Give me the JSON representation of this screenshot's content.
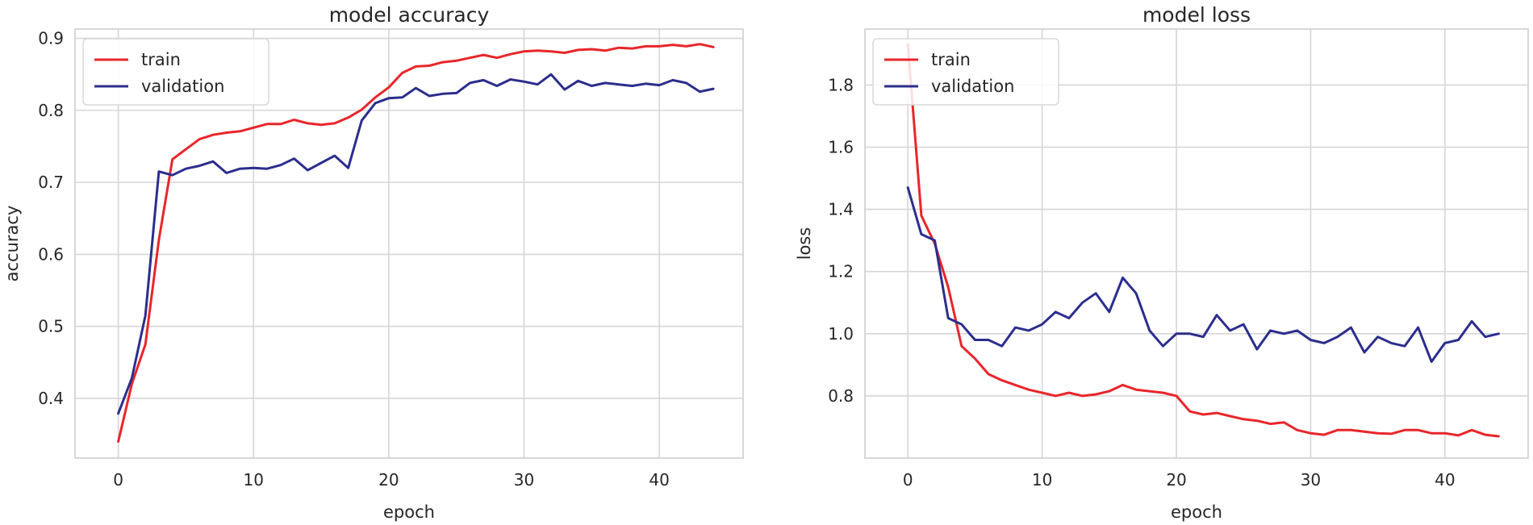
{
  "chart_data": [
    {
      "type": "line",
      "title": "model accuracy",
      "xlabel": "epoch",
      "ylabel": "accuracy",
      "xlim": [
        -3.2,
        46.2
      ],
      "ylim": [
        0.317,
        0.913
      ],
      "xticks": [
        0,
        10,
        20,
        30,
        40
      ],
      "yticks": [
        0.4,
        0.5,
        0.6,
        0.7,
        0.8,
        0.9
      ],
      "yticks_labels": [
        "0.4",
        "0.5",
        "0.6",
        "0.7",
        "0.8",
        "0.9"
      ],
      "grid": true,
      "legend": "upper left",
      "x": [
        0,
        1,
        2,
        3,
        4,
        5,
        6,
        7,
        8,
        9,
        10,
        11,
        12,
        13,
        14,
        15,
        16,
        17,
        18,
        19,
        20,
        21,
        22,
        23,
        24,
        25,
        26,
        27,
        28,
        29,
        30,
        31,
        32,
        33,
        34,
        35,
        36,
        37,
        38,
        39,
        40,
        41,
        42,
        43,
        44
      ],
      "series": [
        {
          "name": "train",
          "color": "#e8262b",
          "values": [
            0.34,
            0.42,
            0.475,
            0.62,
            0.732,
            0.746,
            0.76,
            0.766,
            0.769,
            0.771,
            0.776,
            0.781,
            0.781,
            0.787,
            0.782,
            0.78,
            0.782,
            0.79,
            0.801,
            0.818,
            0.832,
            0.852,
            0.861,
            0.862,
            0.867,
            0.869,
            0.873,
            0.877,
            0.873,
            0.878,
            0.882,
            0.883,
            0.882,
            0.88,
            0.884,
            0.885,
            0.883,
            0.887,
            0.886,
            0.889,
            0.889,
            0.891,
            0.889,
            0.892,
            0.888
          ]
        },
        {
          "name": "validation",
          "color": "#2b2e8c",
          "values": [
            0.379,
            0.428,
            0.515,
            0.715,
            0.71,
            0.719,
            0.723,
            0.729,
            0.713,
            0.719,
            0.72,
            0.719,
            0.724,
            0.733,
            0.717,
            0.727,
            0.737,
            0.72,
            0.786,
            0.81,
            0.817,
            0.818,
            0.831,
            0.82,
            0.823,
            0.824,
            0.838,
            0.842,
            0.834,
            0.843,
            0.84,
            0.836,
            0.85,
            0.829,
            0.841,
            0.834,
            0.838,
            0.836,
            0.834,
            0.837,
            0.835,
            0.842,
            0.838,
            0.826,
            0.83
          ]
        }
      ]
    },
    {
      "type": "line",
      "title": "model loss",
      "xlabel": "epoch",
      "ylabel": "loss",
      "xlim": [
        -3.2,
        46.2
      ],
      "ylim": [
        0.6,
        1.98
      ],
      "xticks": [
        0,
        10,
        20,
        30,
        40
      ],
      "yticks": [
        0.8,
        1.0,
        1.2,
        1.4,
        1.6,
        1.8
      ],
      "yticks_labels": [
        "0.8",
        "1.0",
        "1.2",
        "1.4",
        "1.6",
        "1.8"
      ],
      "grid": true,
      "legend": "upper left",
      "x": [
        0,
        1,
        2,
        3,
        4,
        5,
        6,
        7,
        8,
        9,
        10,
        11,
        12,
        13,
        14,
        15,
        16,
        17,
        18,
        19,
        20,
        21,
        22,
        23,
        24,
        25,
        26,
        27,
        28,
        29,
        30,
        31,
        32,
        33,
        34,
        35,
        36,
        37,
        38,
        39,
        40,
        41,
        42,
        43,
        44
      ],
      "series": [
        {
          "name": "train",
          "color": "#e8262b",
          "values": [
            1.93,
            1.38,
            1.29,
            1.15,
            0.96,
            0.92,
            0.87,
            0.85,
            0.835,
            0.82,
            0.81,
            0.8,
            0.81,
            0.8,
            0.805,
            0.815,
            0.835,
            0.82,
            0.815,
            0.81,
            0.8,
            0.75,
            0.74,
            0.745,
            0.735,
            0.725,
            0.72,
            0.71,
            0.715,
            0.69,
            0.68,
            0.675,
            0.69,
            0.69,
            0.685,
            0.68,
            0.678,
            0.69,
            0.69,
            0.68,
            0.68,
            0.673,
            0.69,
            0.675,
            0.67
          ]
        },
        {
          "name": "validation",
          "color": "#2b2e8c",
          "values": [
            1.47,
            1.32,
            1.3,
            1.05,
            1.03,
            0.98,
            0.98,
            0.96,
            1.02,
            1.01,
            1.03,
            1.07,
            1.05,
            1.1,
            1.13,
            1.07,
            1.18,
            1.13,
            1.01,
            0.96,
            1.0,
            1.0,
            0.99,
            1.06,
            1.01,
            1.03,
            0.95,
            1.01,
            1.0,
            1.01,
            0.98,
            0.97,
            0.99,
            1.02,
            0.94,
            0.99,
            0.97,
            0.96,
            1.02,
            0.91,
            0.97,
            0.98,
            1.04,
            0.99,
            1.0
          ]
        }
      ]
    }
  ]
}
